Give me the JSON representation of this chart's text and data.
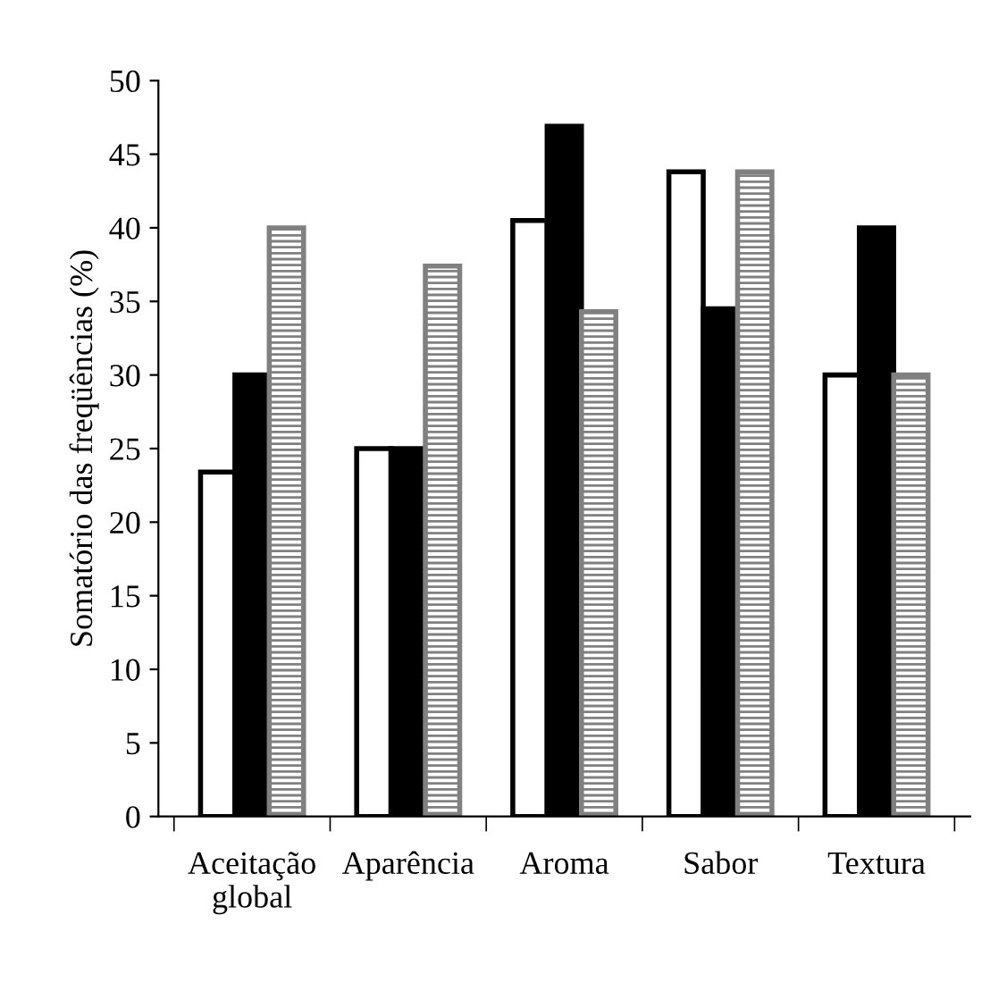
{
  "chart_data": {
    "type": "bar",
    "ylabel": "Somatório das freqüências (%)",
    "categories": [
      "Aceitação\nglobal",
      "Aparência",
      "Aroma",
      "Sabor",
      "Textura"
    ],
    "series": [
      {
        "color": "#ffffff",
        "values": [
          23.4,
          25,
          40.5,
          43.8,
          30
        ]
      },
      {
        "color": "#000000",
        "values": [
          30,
          25,
          46.9,
          34.5,
          40
        ]
      },
      {
        "color": "#808080",
        "values": [
          40,
          37.4,
          34.3,
          43.8,
          30
        ]
      }
    ],
    "ylim": [
      0,
      50
    ],
    "yticks": [
      0,
      5,
      10,
      15,
      20,
      25,
      30,
      35,
      40,
      45,
      50
    ],
    "grid": false,
    "legend": false
  }
}
